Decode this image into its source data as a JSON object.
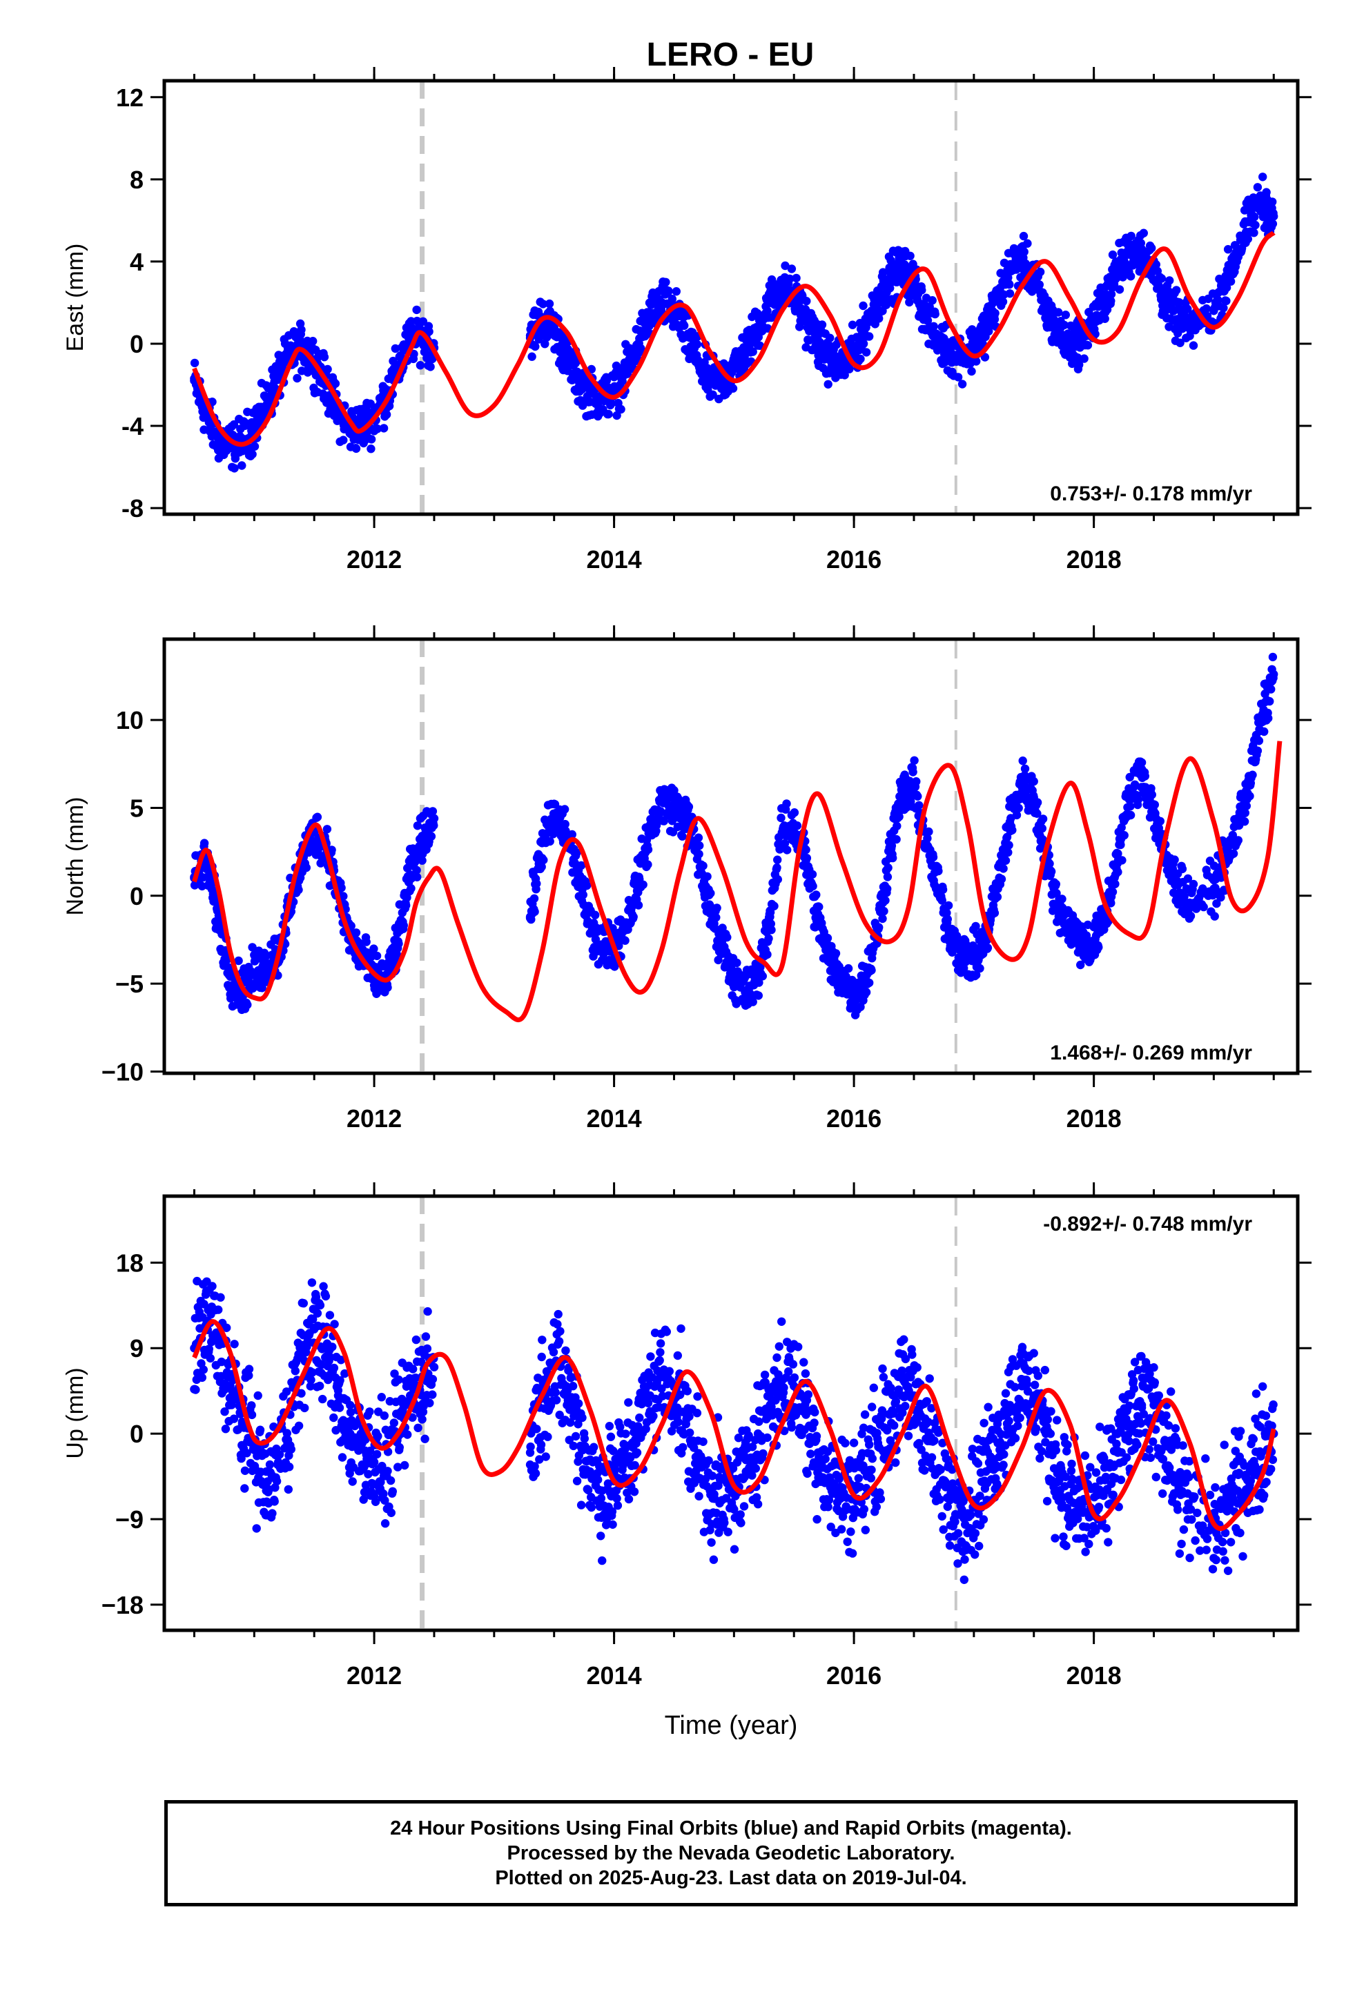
{
  "title": "LERO - EU",
  "caption": {
    "line1": "24 Hour Positions Using Final Orbits (blue) and Rapid Orbits (magenta).",
    "line2": "Processed by the Nevada Geodetic Laboratory.",
    "line3": "Plotted on 2025-Aug-23. Last data on 2019-Jul-04."
  },
  "colors": {
    "points": "#0000ff",
    "model": "#ff0000",
    "breaks": "#c8c8c8",
    "frame": "#000000"
  },
  "chart_data": [
    {
      "type": "scatter",
      "component": "East",
      "ylabel": "East (mm)",
      "xlabel": "",
      "xlim": [
        2010.25,
        2019.7
      ],
      "ylim": [
        -8.3,
        12.8
      ],
      "xticks": [
        2012,
        2014,
        2016,
        2018
      ],
      "xtick_labels": [
        "2012",
        "2014",
        "2016",
        "2018"
      ],
      "yticks": [
        -8,
        -4,
        0,
        4,
        8,
        12
      ],
      "ytick_labels": [
        "-8",
        "-4",
        "0",
        "4",
        "8",
        "12"
      ],
      "rate_label": "0.753+/- 0.178 mm/yr",
      "rate_position": "bottom-right",
      "breaks": [
        2012.4,
        2016.85
      ],
      "break_styles": [
        "dashed",
        "dashed-light"
      ],
      "series": [
        {
          "name": "",
          "kind": "points",
          "x": [
            2010.5,
            2010.6,
            2010.7,
            2010.8,
            2010.9,
            2011.0,
            2011.1,
            2011.2,
            2011.3,
            2011.4,
            2011.5,
            2011.6,
            2011.7,
            2011.8,
            2011.9,
            2012.0,
            2012.1,
            2012.2,
            2012.3,
            2012.4,
            2012.5,
            2013.3,
            2013.4,
            2013.5,
            2013.6,
            2013.7,
            2013.8,
            2013.9,
            2014.0,
            2014.1,
            2014.2,
            2014.3,
            2014.4,
            2014.5,
            2014.6,
            2014.7,
            2014.8,
            2014.9,
            2015.0,
            2015.1,
            2015.2,
            2015.3,
            2015.4,
            2015.5,
            2015.6,
            2015.7,
            2015.8,
            2015.9,
            2016.0,
            2016.1,
            2016.2,
            2016.3,
            2016.4,
            2016.5,
            2016.6,
            2016.7,
            2016.8,
            2016.9,
            2017.0,
            2017.1,
            2017.2,
            2017.3,
            2017.4,
            2017.5,
            2017.6,
            2017.7,
            2017.8,
            2017.9,
            2018.0,
            2018.1,
            2018.2,
            2018.3,
            2018.4,
            2018.5,
            2018.6,
            2018.7,
            2018.8,
            2019.0,
            2019.1,
            2019.2,
            2019.3,
            2019.4,
            2019.5
          ],
          "y": [
            -1.8,
            -3.5,
            -4.6,
            -5.0,
            -4.8,
            -4.0,
            -3.0,
            -1.6,
            -0.6,
            -0.2,
            -0.8,
            -2.0,
            -3.4,
            -4.2,
            -4.0,
            -3.6,
            -2.6,
            -1.2,
            0.2,
            0.4,
            -0.2,
            0.4,
            1.2,
            0.8,
            -0.6,
            -1.8,
            -2.4,
            -2.6,
            -2.4,
            -1.4,
            0.0,
            1.4,
            2.0,
            1.6,
            0.4,
            -0.8,
            -1.8,
            -1.8,
            -1.2,
            -0.4,
            0.8,
            2.0,
            2.8,
            2.4,
            1.2,
            0.0,
            -0.8,
            -1.0,
            -0.4,
            0.8,
            2.2,
            3.2,
            3.6,
            3.0,
            1.4,
            0.2,
            -0.4,
            -0.6,
            -0.2,
            0.8,
            2.2,
            3.6,
            4.0,
            3.2,
            1.6,
            0.6,
            0.0,
            0.2,
            1.0,
            2.4,
            3.6,
            4.4,
            4.6,
            3.6,
            2.0,
            1.2,
            0.8,
            1.6,
            3.0,
            4.6,
            6.0,
            7.0,
            6.2
          ]
        },
        {
          "name": "",
          "kind": "model",
          "x": [
            2010.5,
            2010.7,
            2010.9,
            2011.1,
            2011.3,
            2011.4,
            2011.6,
            2011.8,
            2011.9,
            2012.1,
            2012.3,
            2012.4,
            2012.6,
            2012.8,
            2013.0,
            2013.2,
            2013.4,
            2013.6,
            2013.8,
            2014.0,
            2014.2,
            2014.4,
            2014.6,
            2014.8,
            2015.0,
            2015.2,
            2015.4,
            2015.6,
            2015.8,
            2016.0,
            2016.2,
            2016.4,
            2016.6,
            2016.8,
            2017.0,
            2017.2,
            2017.4,
            2017.6,
            2017.8,
            2018.0,
            2018.2,
            2018.4,
            2018.6,
            2018.8,
            2019.0,
            2019.2,
            2019.4,
            2019.5
          ],
          "y": [
            -1.2,
            -4.0,
            -4.9,
            -3.8,
            -1.0,
            -0.3,
            -1.8,
            -3.8,
            -4.2,
            -2.8,
            -0.3,
            0.5,
            -1.4,
            -3.4,
            -3.0,
            -1.0,
            1.2,
            0.6,
            -1.6,
            -2.6,
            -1.2,
            1.2,
            1.8,
            -0.4,
            -1.8,
            -0.8,
            1.6,
            2.8,
            1.4,
            -1.0,
            -0.6,
            2.4,
            3.6,
            1.0,
            -0.6,
            0.6,
            2.8,
            4.0,
            2.2,
            0.2,
            0.6,
            3.2,
            4.6,
            2.2,
            0.8,
            2.2,
            4.8,
            5.4
          ]
        }
      ]
    },
    {
      "type": "scatter",
      "component": "North",
      "ylabel": "North (mm)",
      "xlabel": "",
      "xlim": [
        2010.25,
        2019.7
      ],
      "ylim": [
        -10.1,
        14.6
      ],
      "xticks": [
        2012,
        2014,
        2016,
        2018
      ],
      "xtick_labels": [
        "2012",
        "2014",
        "2016",
        "2018"
      ],
      "yticks": [
        -10,
        -5,
        0,
        5,
        10
      ],
      "ytick_labels": [
        "−10",
        "−5",
        "0",
        "5",
        "10"
      ],
      "rate_label": "1.468+/- 0.269 mm/yr",
      "rate_position": "bottom-right",
      "breaks": [
        2012.4,
        2016.85
      ],
      "break_styles": [
        "dashed",
        "dashed-light"
      ],
      "series": [
        {
          "name": "",
          "kind": "points",
          "x": [
            2010.5,
            2010.6,
            2010.7,
            2010.8,
            2010.9,
            2011.0,
            2011.1,
            2011.2,
            2011.3,
            2011.4,
            2011.5,
            2011.6,
            2011.7,
            2011.8,
            2011.9,
            2012.0,
            2012.1,
            2012.2,
            2012.3,
            2012.4,
            2012.5,
            2013.3,
            2013.4,
            2013.5,
            2013.6,
            2013.7,
            2013.8,
            2013.9,
            2014.0,
            2014.1,
            2014.2,
            2014.3,
            2014.4,
            2014.5,
            2014.6,
            2014.7,
            2014.8,
            2014.9,
            2015.0,
            2015.1,
            2015.2,
            2015.3,
            2015.4,
            2015.5,
            2015.6,
            2015.7,
            2015.8,
            2015.9,
            2016.0,
            2016.1,
            2016.2,
            2016.3,
            2016.4,
            2016.5,
            2016.6,
            2016.7,
            2016.8,
            2016.9,
            2017.0,
            2017.1,
            2017.2,
            2017.3,
            2017.4,
            2017.5,
            2017.6,
            2017.7,
            2017.8,
            2017.9,
            2018.0,
            2018.1,
            2018.2,
            2018.3,
            2018.4,
            2018.5,
            2018.6,
            2018.7,
            2018.8,
            2019.0,
            2019.1,
            2019.2,
            2019.3,
            2019.4,
            2019.5
          ],
          "y": [
            1.0,
            2.0,
            -1.4,
            -4.6,
            -5.4,
            -4.4,
            -4.0,
            -3.2,
            -0.6,
            2.0,
            3.6,
            3.0,
            0.2,
            -2.4,
            -3.4,
            -4.6,
            -4.8,
            -2.6,
            1.2,
            3.4,
            4.4,
            -1.2,
            3.0,
            4.4,
            3.6,
            1.2,
            -1.6,
            -2.8,
            -2.8,
            -1.6,
            0.8,
            3.6,
            5.4,
            5.0,
            4.4,
            2.4,
            -1.0,
            -2.6,
            -4.6,
            -5.6,
            -4.8,
            -1.2,
            3.6,
            4.0,
            2.0,
            -1.4,
            -3.8,
            -4.6,
            -5.6,
            -4.8,
            -1.8,
            2.6,
            5.8,
            6.2,
            3.0,
            0.4,
            -2.0,
            -3.4,
            -3.6,
            -2.4,
            0.6,
            4.2,
            6.4,
            5.6,
            2.2,
            -0.6,
            -1.8,
            -2.6,
            -2.8,
            -1.2,
            2.4,
            5.6,
            7.2,
            4.8,
            2.0,
            0.6,
            -0.4,
            0.4,
            1.8,
            4.0,
            6.6,
            10.0,
            12.6
          ]
        },
        {
          "name": "",
          "kind": "model",
          "x": [
            2010.5,
            2010.6,
            2010.7,
            2010.8,
            2010.9,
            2011.0,
            2011.1,
            2011.2,
            2011.35,
            2011.5,
            2011.6,
            2011.75,
            2011.9,
            2012.1,
            2012.25,
            2012.35,
            2012.45,
            2012.55,
            2012.7,
            2012.9,
            2013.1,
            2013.25,
            2013.4,
            2013.55,
            2013.7,
            2013.9,
            2014.1,
            2014.25,
            2014.4,
            2014.55,
            2014.7,
            2014.9,
            2015.1,
            2015.25,
            2015.4,
            2015.55,
            2015.7,
            2015.9,
            2016.1,
            2016.3,
            2016.45,
            2016.6,
            2016.8,
            2016.95,
            2017.1,
            2017.3,
            2017.45,
            2017.6,
            2017.8,
            2017.95,
            2018.1,
            2018.3,
            2018.45,
            2018.6,
            2018.8,
            2019.0,
            2019.15,
            2019.3,
            2019.45,
            2019.55
          ],
          "y": [
            0.8,
            2.6,
            0.4,
            -3.2,
            -5.2,
            -5.8,
            -5.6,
            -3.4,
            1.4,
            4.0,
            2.6,
            -1.4,
            -3.6,
            -4.8,
            -3.2,
            -0.4,
            1.0,
            1.4,
            -1.6,
            -5.2,
            -6.6,
            -6.8,
            -3.2,
            2.0,
            3.0,
            -1.0,
            -4.6,
            -5.4,
            -3.0,
            1.4,
            4.4,
            1.6,
            -2.6,
            -3.8,
            -4.0,
            2.8,
            5.8,
            2.0,
            -1.6,
            -2.6,
            -0.8,
            5.2,
            7.4,
            4.0,
            -1.6,
            -3.6,
            -2.4,
            2.6,
            6.4,
            3.6,
            -0.6,
            -2.2,
            -1.8,
            3.4,
            7.8,
            4.2,
            -0.2,
            -0.6,
            2.2,
            8.8
          ]
        }
      ]
    },
    {
      "type": "scatter",
      "component": "Up",
      "ylabel": "Up (mm)",
      "xlabel": "Time (year)",
      "xlim": [
        2010.25,
        2019.7
      ],
      "ylim": [
        -20.7,
        25.0
      ],
      "xticks": [
        2012,
        2014,
        2016,
        2018
      ],
      "xtick_labels": [
        "2012",
        "2014",
        "2016",
        "2018"
      ],
      "yticks": [
        -18,
        -9,
        0,
        9,
        18
      ],
      "ytick_labels": [
        "−18",
        "−9",
        "0",
        "9",
        "18"
      ],
      "rate_label": "-0.892+/- 0.748 mm/yr",
      "rate_position": "top-right",
      "breaks": [
        2012.4,
        2016.85
      ],
      "break_styles": [
        "dashed",
        "dashed-light"
      ],
      "series": [
        {
          "name": "",
          "kind": "points",
          "x": [
            2010.5,
            2010.6,
            2010.7,
            2010.8,
            2010.9,
            2011.0,
            2011.1,
            2011.2,
            2011.3,
            2011.4,
            2011.5,
            2011.6,
            2011.7,
            2011.8,
            2011.9,
            2012.0,
            2012.1,
            2012.2,
            2012.3,
            2012.4,
            2012.5,
            2013.3,
            2013.4,
            2013.5,
            2013.6,
            2013.7,
            2013.8,
            2013.9,
            2014.0,
            2014.1,
            2014.2,
            2014.3,
            2014.4,
            2014.5,
            2014.6,
            2014.7,
            2014.8,
            2014.9,
            2015.0,
            2015.1,
            2015.2,
            2015.3,
            2015.4,
            2015.5,
            2015.6,
            2015.7,
            2015.8,
            2015.9,
            2016.0,
            2016.1,
            2016.2,
            2016.3,
            2016.4,
            2016.5,
            2016.6,
            2016.7,
            2016.8,
            2016.9,
            2017.0,
            2017.1,
            2017.2,
            2017.3,
            2017.4,
            2017.5,
            2017.6,
            2017.7,
            2017.8,
            2017.9,
            2018.0,
            2018.1,
            2018.2,
            2018.3,
            2018.4,
            2018.5,
            2018.6,
            2018.7,
            2018.8,
            2019.0,
            2019.1,
            2019.2,
            2019.3,
            2019.4,
            2019.5
          ],
          "y": [
            9.0,
            11.5,
            10.0,
            5.0,
            1.0,
            -1.0,
            -6.0,
            -3.0,
            2.0,
            8.0,
            11.0,
            9.0,
            4.0,
            0.0,
            -1.0,
            -3.0,
            -4.0,
            0.0,
            4.0,
            6.0,
            7.0,
            -2.0,
            4.0,
            7.0,
            5.0,
            1.0,
            -4.0,
            -6.0,
            -5.0,
            -3.0,
            0.0,
            4.0,
            6.0,
            5.0,
            1.0,
            -3.0,
            -6.0,
            -7.0,
            -6.0,
            -4.0,
            0.0,
            3.0,
            5.0,
            5.0,
            2.0,
            -2.0,
            -5.0,
            -6.0,
            -6.0,
            -4.0,
            -1.0,
            2.0,
            4.0,
            4.0,
            1.0,
            -4.0,
            -7.0,
            -8.0,
            -7.0,
            -4.0,
            -1.0,
            3.0,
            5.0,
            4.0,
            0.0,
            -4.0,
            -7.0,
            -8.0,
            -8.0,
            -6.0,
            -2.0,
            1.0,
            3.0,
            3.0,
            -1.0,
            -5.0,
            -8.0,
            -10.0,
            -8.0,
            -6.0,
            -4.0,
            -2.0,
            0.0
          ]
        },
        {
          "name": "",
          "kind": "model",
          "x": [
            2010.5,
            2010.65,
            2010.8,
            2010.95,
            2011.05,
            2011.2,
            2011.4,
            2011.6,
            2011.75,
            2011.9,
            2012.05,
            2012.2,
            2012.35,
            2012.45,
            2012.6,
            2012.75,
            2012.9,
            2013.05,
            2013.2,
            2013.4,
            2013.6,
            2013.8,
            2014.0,
            2014.2,
            2014.4,
            2014.6,
            2014.8,
            2015.0,
            2015.2,
            2015.4,
            2015.6,
            2015.8,
            2016.0,
            2016.2,
            2016.4,
            2016.6,
            2016.8,
            2017.0,
            2017.2,
            2017.4,
            2017.6,
            2017.8,
            2018.0,
            2018.2,
            2018.4,
            2018.6,
            2018.8,
            2019.0,
            2019.2,
            2019.4,
            2019.5
          ],
          "y": [
            8.0,
            11.8,
            8.5,
            1.0,
            -1.0,
            0.5,
            6.0,
            11.0,
            8.5,
            1.5,
            -1.5,
            0.0,
            4.0,
            7.5,
            8.0,
            3.0,
            -3.5,
            -4.0,
            -1.5,
            4.0,
            8.0,
            2.5,
            -5.0,
            -4.0,
            1.0,
            6.5,
            2.5,
            -5.5,
            -5.0,
            1.0,
            5.5,
            0.5,
            -6.5,
            -5.0,
            0.0,
            5.0,
            -1.5,
            -7.5,
            -6.5,
            -1.5,
            4.5,
            1.0,
            -8.5,
            -7.0,
            -2.0,
            3.5,
            -1.0,
            -9.5,
            -8.5,
            -4.5,
            0.5
          ]
        }
      ]
    }
  ]
}
